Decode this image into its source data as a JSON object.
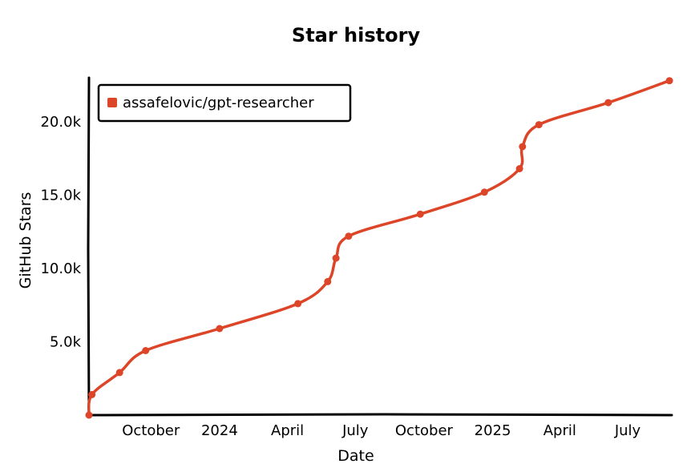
{
  "chart_data": {
    "type": "line",
    "title": "Star history",
    "xlabel": "Date",
    "ylabel": "GitHub Stars",
    "xlim": [
      "2023-07-10",
      "2025-08-28"
    ],
    "ylim": [
      0,
      23000
    ],
    "y_ticks": [
      {
        "value": 5000,
        "label": "5.0k"
      },
      {
        "value": 10000,
        "label": "10.0k"
      },
      {
        "value": 15000,
        "label": "15.0k"
      },
      {
        "value": 20000,
        "label": "20.0k"
      }
    ],
    "x_ticks": [
      {
        "value": "2023-10-01",
        "label": "October"
      },
      {
        "value": "2024-01-01",
        "label": "2024"
      },
      {
        "value": "2024-04-01",
        "label": "April"
      },
      {
        "value": "2024-07-01",
        "label": "July"
      },
      {
        "value": "2024-10-01",
        "label": "October"
      },
      {
        "value": "2025-01-01",
        "label": "2025"
      },
      {
        "value": "2025-04-01",
        "label": "April"
      },
      {
        "value": "2025-07-01",
        "label": "July"
      }
    ],
    "legend_placement": "top-left",
    "grid": false,
    "series": [
      {
        "name": "assafelovic/gpt-researcher",
        "color": "#dd4528",
        "points": [
          {
            "x": "2023-07-10",
            "y": 0
          },
          {
            "x": "2023-07-14",
            "y": 1400
          },
          {
            "x": "2023-08-20",
            "y": 2900
          },
          {
            "x": "2023-09-24",
            "y": 4400
          },
          {
            "x": "2024-01-01",
            "y": 5900
          },
          {
            "x": "2024-04-15",
            "y": 7600
          },
          {
            "x": "2024-05-25",
            "y": 9100
          },
          {
            "x": "2024-06-05",
            "y": 10700
          },
          {
            "x": "2024-06-22",
            "y": 12200
          },
          {
            "x": "2024-09-26",
            "y": 13700
          },
          {
            "x": "2024-12-21",
            "y": 15200
          },
          {
            "x": "2025-02-06",
            "y": 16800
          },
          {
            "x": "2025-02-10",
            "y": 18300
          },
          {
            "x": "2025-03-04",
            "y": 19800
          },
          {
            "x": "2025-06-05",
            "y": 21300
          },
          {
            "x": "2025-08-26",
            "y": 22800
          }
        ]
      }
    ]
  }
}
